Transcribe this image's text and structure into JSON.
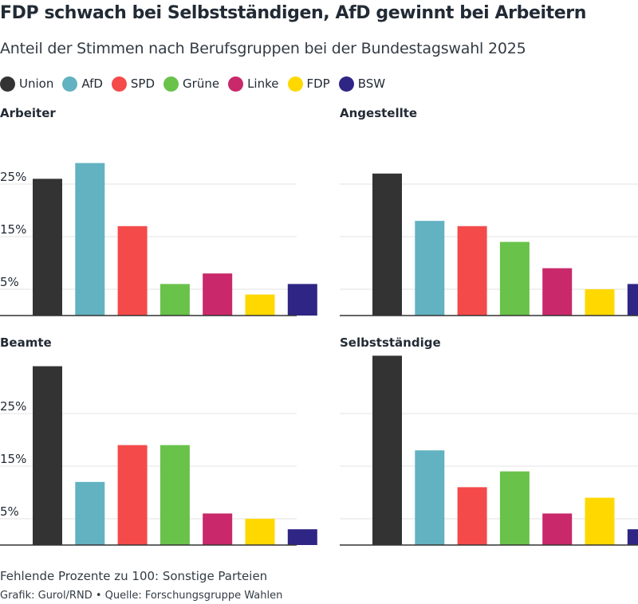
{
  "title": "FDP schwach bei Selbstständigen, AfD gewinnt bei Arbeitern",
  "subtitle": "Anteil der Stimmen nach Berufsgruppen bei der Bundestagswahl 2025",
  "legend": [
    {
      "label": "Union",
      "color": "#333333"
    },
    {
      "label": "AfD",
      "color": "#62b2c1"
    },
    {
      "label": "SPD",
      "color": "#f44a4a"
    },
    {
      "label": "Grüne",
      "color": "#69c24a"
    },
    {
      "label": "Linke",
      "color": "#c9286a"
    },
    {
      "label": "FDP",
      "color": "#ffd800"
    },
    {
      "label": "BSW",
      "color": "#2e2584"
    }
  ],
  "chart_data": [
    {
      "type": "bar",
      "title": "Arbeiter",
      "categories": [
        "Union",
        "AfD",
        "SPD",
        "Grüne",
        "Linke",
        "FDP",
        "BSW"
      ],
      "values": [
        26,
        29,
        17,
        6,
        8,
        4,
        6
      ],
      "yticks": [
        5,
        15,
        25
      ],
      "ytick_labels": [
        "5%",
        "15%",
        "25%"
      ],
      "ylim": [
        0,
        35
      ],
      "grid": true
    },
    {
      "type": "bar",
      "title": "Angestellte",
      "categories": [
        "Union",
        "AfD",
        "SPD",
        "Grüne",
        "Linke",
        "FDP",
        "BSW"
      ],
      "values": [
        27,
        18,
        17,
        14,
        9,
        5,
        6
      ],
      "yticks": [
        5,
        15,
        25
      ],
      "ytick_labels": [],
      "ylim": [
        0,
        35
      ],
      "grid": true
    },
    {
      "type": "bar",
      "title": "Beamte",
      "categories": [
        "Union",
        "AfD",
        "SPD",
        "Grüne",
        "Linke",
        "FDP",
        "BSW"
      ],
      "values": [
        34,
        12,
        19,
        19,
        6,
        5,
        3
      ],
      "yticks": [
        5,
        15,
        25
      ],
      "ytick_labels": [
        "5%",
        "15%",
        "25%"
      ],
      "ylim": [
        0,
        35
      ],
      "grid": true
    },
    {
      "type": "bar",
      "title": "Selbstständige",
      "categories": [
        "Union",
        "AfD",
        "SPD",
        "Grüne",
        "Linke",
        "FDP",
        "BSW"
      ],
      "values": [
        36,
        18,
        11,
        14,
        6,
        9,
        3
      ],
      "yticks": [
        5,
        15,
        25
      ],
      "ytick_labels": [],
      "ylim": [
        0,
        35
      ],
      "grid": true
    }
  ],
  "footnote": "Fehlende Prozente zu 100: Sonstige Parteien",
  "credit": "Grafik: Gurol/RND • Quelle: Forschungsgruppe Wahlen"
}
